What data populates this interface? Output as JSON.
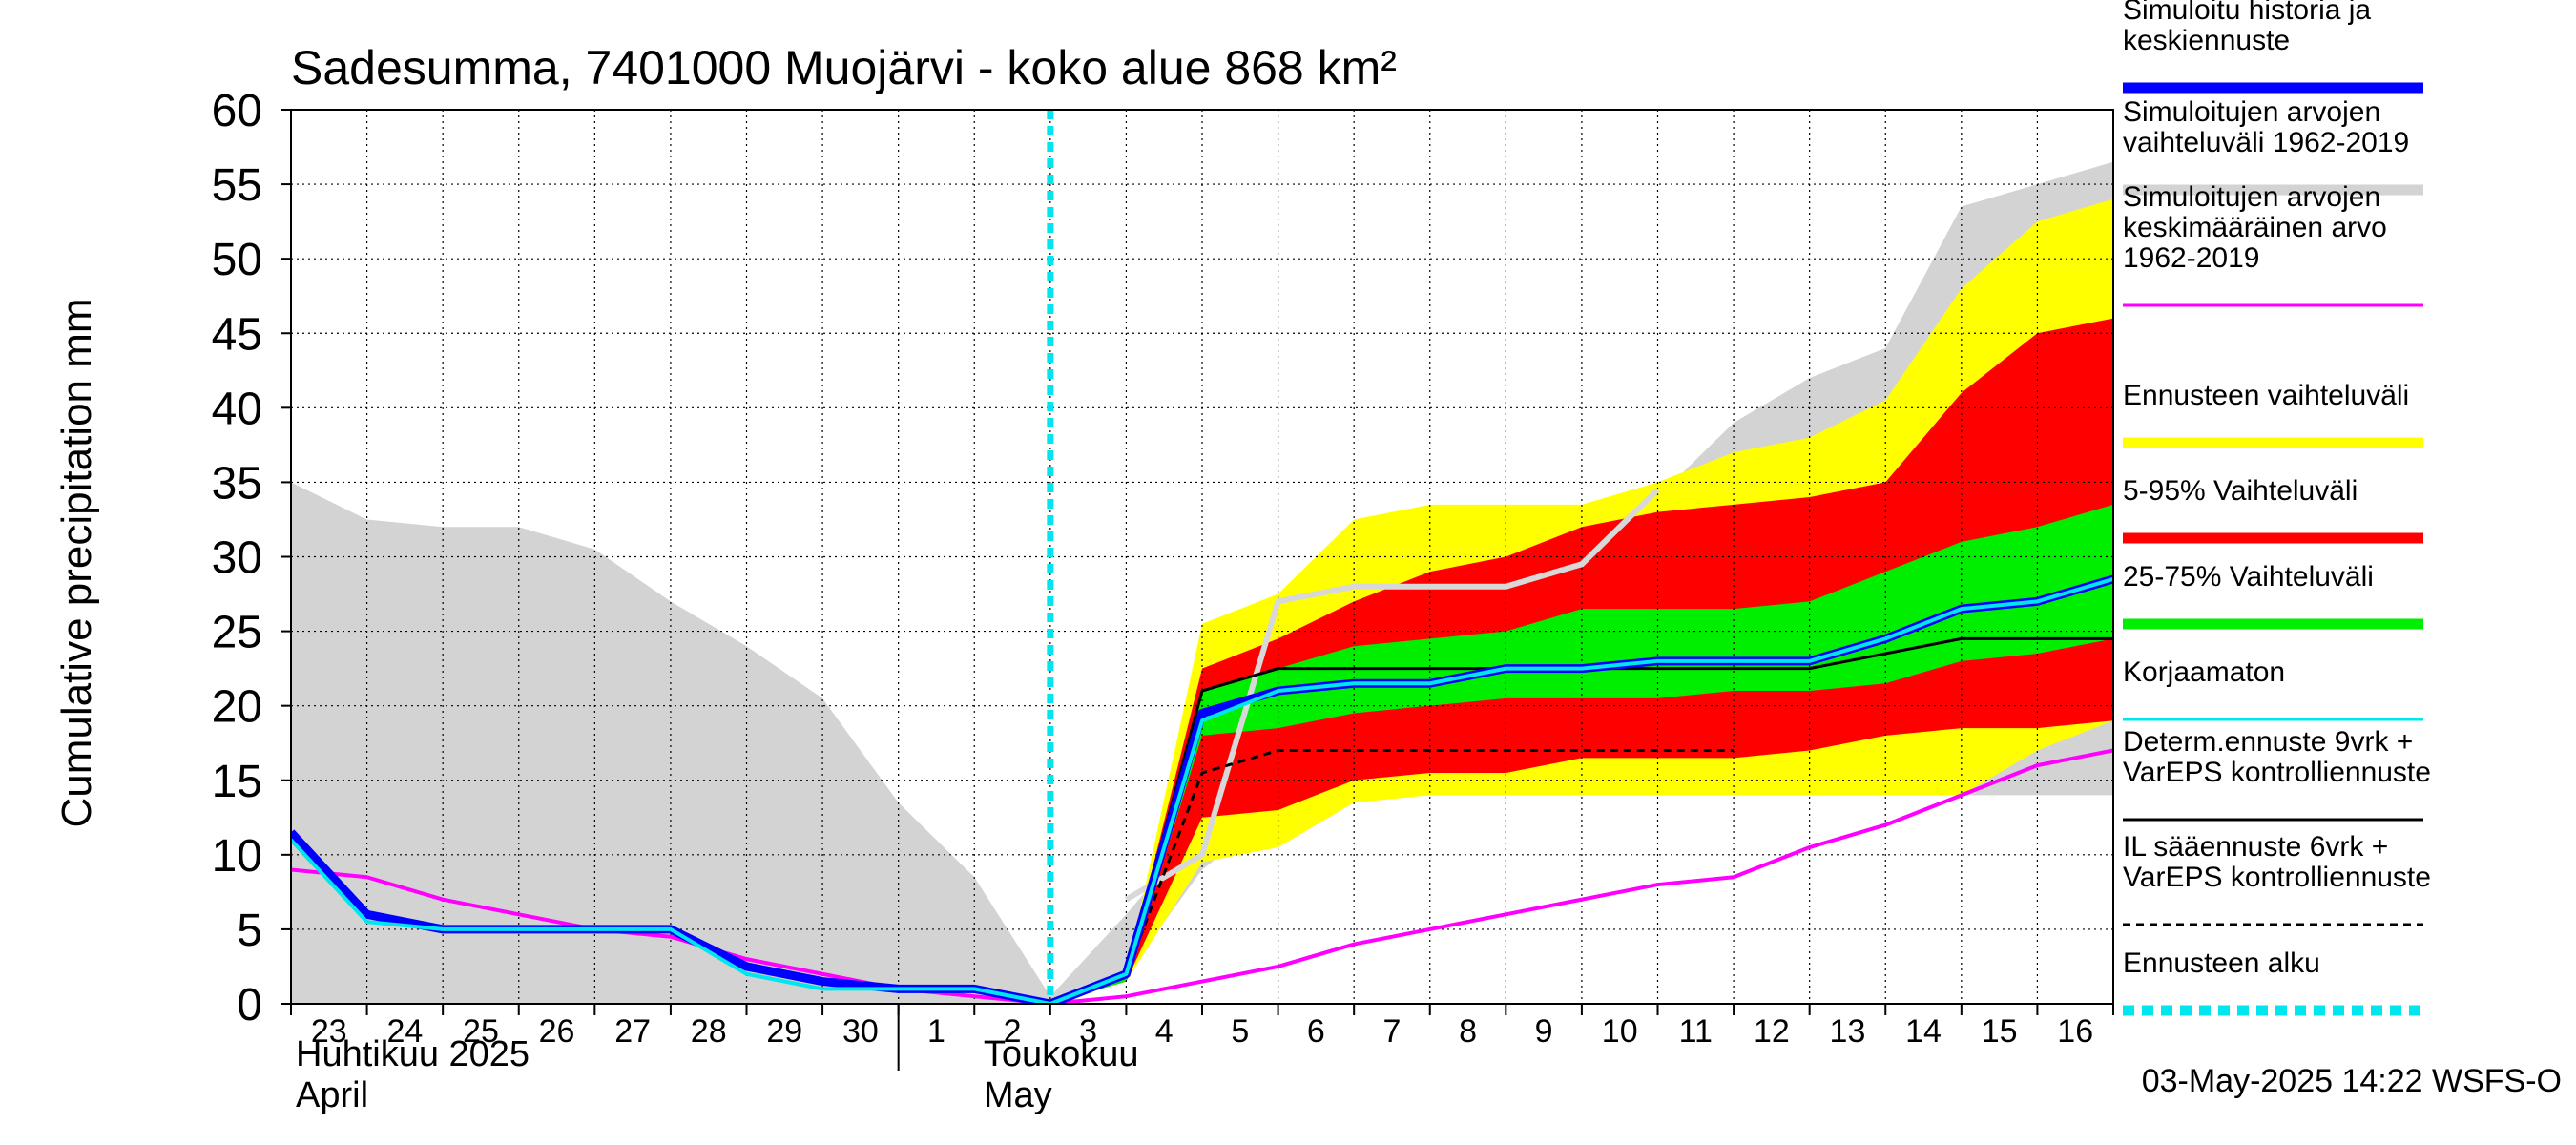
{
  "chart_data": {
    "type": "area",
    "title": "Sadesumma, 7401000 Muojärvi - koko alue 868 km²",
    "ylabel": "Cumulative precipitation   mm",
    "ylim": [
      0,
      60
    ],
    "yticks": [
      0,
      5,
      10,
      15,
      20,
      25,
      30,
      35,
      40,
      45,
      50,
      55,
      60
    ],
    "grid": true,
    "legend_position": "right",
    "x_day_labels": [
      "23",
      "24",
      "25",
      "26",
      "27",
      "28",
      "29",
      "30",
      "1",
      "2",
      "3",
      "4",
      "5",
      "6",
      "7",
      "8",
      "9",
      "10",
      "11",
      "12",
      "13",
      "14",
      "15",
      "16"
    ],
    "x_month_labels": [
      {
        "fi": "Huhtikuu  2025",
        "en": "April"
      },
      {
        "fi": "Toukokuu",
        "en": "May"
      }
    ],
    "forecast_start_day": 10,
    "x": [
      0,
      1,
      2,
      3,
      4,
      5,
      6,
      7,
      8,
      9,
      10,
      11,
      12,
      13,
      14,
      15,
      16,
      17,
      18,
      19,
      20,
      21,
      22,
      23,
      24
    ],
    "series": [
      {
        "name": "Simuloitujen arvojen vaihteluväli 1962-2019",
        "kind": "band",
        "color": "#d3d3d3",
        "upper": [
          35,
          32.5,
          32,
          32,
          30.5,
          27,
          24,
          20.5,
          13.5,
          8.5,
          0.5,
          6,
          12,
          27,
          28.5,
          29,
          30,
          31,
          34,
          39,
          42,
          44,
          53.5,
          55,
          56.5
        ],
        "lower": [
          0,
          0,
          0,
          0,
          0,
          0,
          0,
          0,
          0,
          0,
          0,
          2,
          9,
          13,
          14,
          14,
          14,
          14,
          14,
          14,
          14,
          14,
          14,
          14,
          14
        ]
      },
      {
        "name": "Ennusteen vaihteluväli",
        "kind": "band",
        "color": "#ffff00",
        "upper": [
          null,
          null,
          null,
          null,
          null,
          null,
          null,
          null,
          null,
          null,
          0,
          2,
          25.5,
          27.5,
          32.5,
          33.5,
          33.5,
          33.5,
          35,
          37,
          38,
          40.5,
          48,
          52.5,
          54
        ],
        "lower": [
          null,
          null,
          null,
          null,
          null,
          null,
          null,
          null,
          null,
          null,
          0,
          1.5,
          9.5,
          10.5,
          13.5,
          14,
          14,
          14,
          14,
          14,
          14,
          14,
          14,
          17,
          19
        ]
      },
      {
        "name": "5-95% Vaihteluväli",
        "kind": "band",
        "color": "#ff0000",
        "upper": [
          null,
          null,
          null,
          null,
          null,
          null,
          null,
          null,
          null,
          null,
          0,
          2,
          22.5,
          24.5,
          27,
          29,
          30,
          32,
          33,
          33.5,
          34,
          35,
          41,
          45,
          46
        ],
        "lower": [
          null,
          null,
          null,
          null,
          null,
          null,
          null,
          null,
          null,
          null,
          0,
          1.5,
          12.5,
          13,
          15,
          15.5,
          15.5,
          16.5,
          16.5,
          16.5,
          17,
          18,
          18.5,
          18.5,
          19
        ]
      },
      {
        "name": "25-75% Vaihteluväli",
        "kind": "band",
        "color": "#00ee00",
        "upper": [
          null,
          null,
          null,
          null,
          null,
          null,
          null,
          null,
          null,
          null,
          0,
          2,
          21,
          22.5,
          24,
          24.5,
          25,
          26.5,
          26.5,
          26.5,
          27,
          29,
          31,
          32,
          33.5
        ],
        "lower": [
          null,
          null,
          null,
          null,
          null,
          null,
          null,
          null,
          null,
          null,
          0,
          1.5,
          18,
          18.5,
          19.5,
          20,
          20.5,
          20.5,
          20.5,
          21,
          21,
          21.5,
          23,
          23.5,
          24.5
        ]
      },
      {
        "name": "Simuloitu historia ja keskiennuste",
        "kind": "line",
        "color": "#0000ff",
        "values": [
          11.5,
          6,
          5,
          5,
          5,
          5,
          2.5,
          1.5,
          1,
          1,
          0,
          2,
          19.5,
          21,
          21.5,
          21.5,
          22.5,
          22.5,
          23,
          23,
          23,
          24.5,
          26.5,
          27,
          28.5
        ]
      },
      {
        "name": "Korjaamaton",
        "kind": "line",
        "color": "#00e5ee",
        "values": [
          11,
          5.5,
          5,
          5,
          5,
          5,
          2,
          1,
          1,
          1,
          0,
          2,
          19,
          21,
          21.5,
          21.5,
          22.5,
          22.5,
          23,
          23,
          23,
          24.5,
          26.5,
          27,
          28.5
        ]
      },
      {
        "name": "Simuloitujen arvojen keskimääräinen arvo 1962-2019",
        "kind": "line",
        "color": "#ff00ff",
        "values": [
          9,
          8.5,
          7,
          6,
          5,
          4.5,
          3,
          2,
          1,
          0.5,
          0,
          0.5,
          1.5,
          2.5,
          4,
          5,
          6,
          7,
          8,
          8.5,
          10.5,
          12,
          14,
          16,
          17
        ]
      },
      {
        "name": "Simuloitujen arvojen vaihteluväli 1962-2019 (mediaani)",
        "kind": "line",
        "color": "#d8d8d8",
        "values": [
          null,
          null,
          null,
          null,
          null,
          null,
          null,
          null,
          null,
          null,
          null,
          7,
          10,
          27,
          28,
          28,
          28,
          29.5,
          34.5,
          null,
          null,
          null,
          null,
          null,
          null
        ]
      },
      {
        "name": "Determ.ennuste 9vrk + VarEPS kontrolliennuste",
        "kind": "line",
        "color": "#000000",
        "values": [
          null,
          null,
          null,
          null,
          null,
          null,
          null,
          null,
          null,
          null,
          0,
          2,
          21,
          22.5,
          22.5,
          22.5,
          22.5,
          22.5,
          22.5,
          22.5,
          22.5,
          23.5,
          24.5,
          24.5,
          24.5
        ]
      },
      {
        "name": "IL sääennuste 6vrk + VarEPS kontrolliennuste",
        "kind": "dashed",
        "color": "#000000",
        "values": [
          null,
          null,
          null,
          null,
          null,
          null,
          null,
          null,
          null,
          null,
          0,
          2,
          15.5,
          17,
          17,
          17,
          17,
          17,
          17,
          17,
          null,
          null,
          null,
          null,
          null
        ]
      }
    ]
  },
  "legend": [
    {
      "text": "Simuloitu historia ja\nkeskiennuste",
      "color": "#0000ff",
      "style": "solid",
      "weight": "thick"
    },
    {
      "text": "Simuloitujen arvojen\nvaihteluväli 1962-2019",
      "color": "#d3d3d3",
      "style": "solid",
      "weight": "thick"
    },
    {
      "text": "Simuloitujen arvojen\nkeskimääräinen arvo\n   1962-2019",
      "color": "#ff00ff",
      "style": "solid",
      "weight": "thin"
    },
    {
      "text": "Ennusteen vaihteluväli",
      "color": "#ffff00",
      "style": "solid",
      "weight": "thick"
    },
    {
      "text": "5-95% Vaihteluväli",
      "color": "#ff0000",
      "style": "solid",
      "weight": "thick"
    },
    {
      "text": "25-75% Vaihteluväli",
      "color": "#00ee00",
      "style": "solid",
      "weight": "thick"
    },
    {
      "text": "Korjaamaton",
      "color": "#00e5ee",
      "style": "solid",
      "weight": "thin"
    },
    {
      "text": "Determ.ennuste 9vrk +\nVarEPS kontrolliennuste",
      "color": "#000000",
      "style": "solid",
      "weight": "thin"
    },
    {
      "text": "IL sääennuste 6vrk  +\n  VarEPS kontrolliennuste",
      "color": "#000000",
      "style": "dashed",
      "weight": "thin"
    },
    {
      "text": "Ennusteen alku",
      "color": "#00e5ee",
      "style": "dotted",
      "weight": "thick"
    }
  ],
  "footer_timestamp": "03-May-2025 14:22 WSFS-O"
}
